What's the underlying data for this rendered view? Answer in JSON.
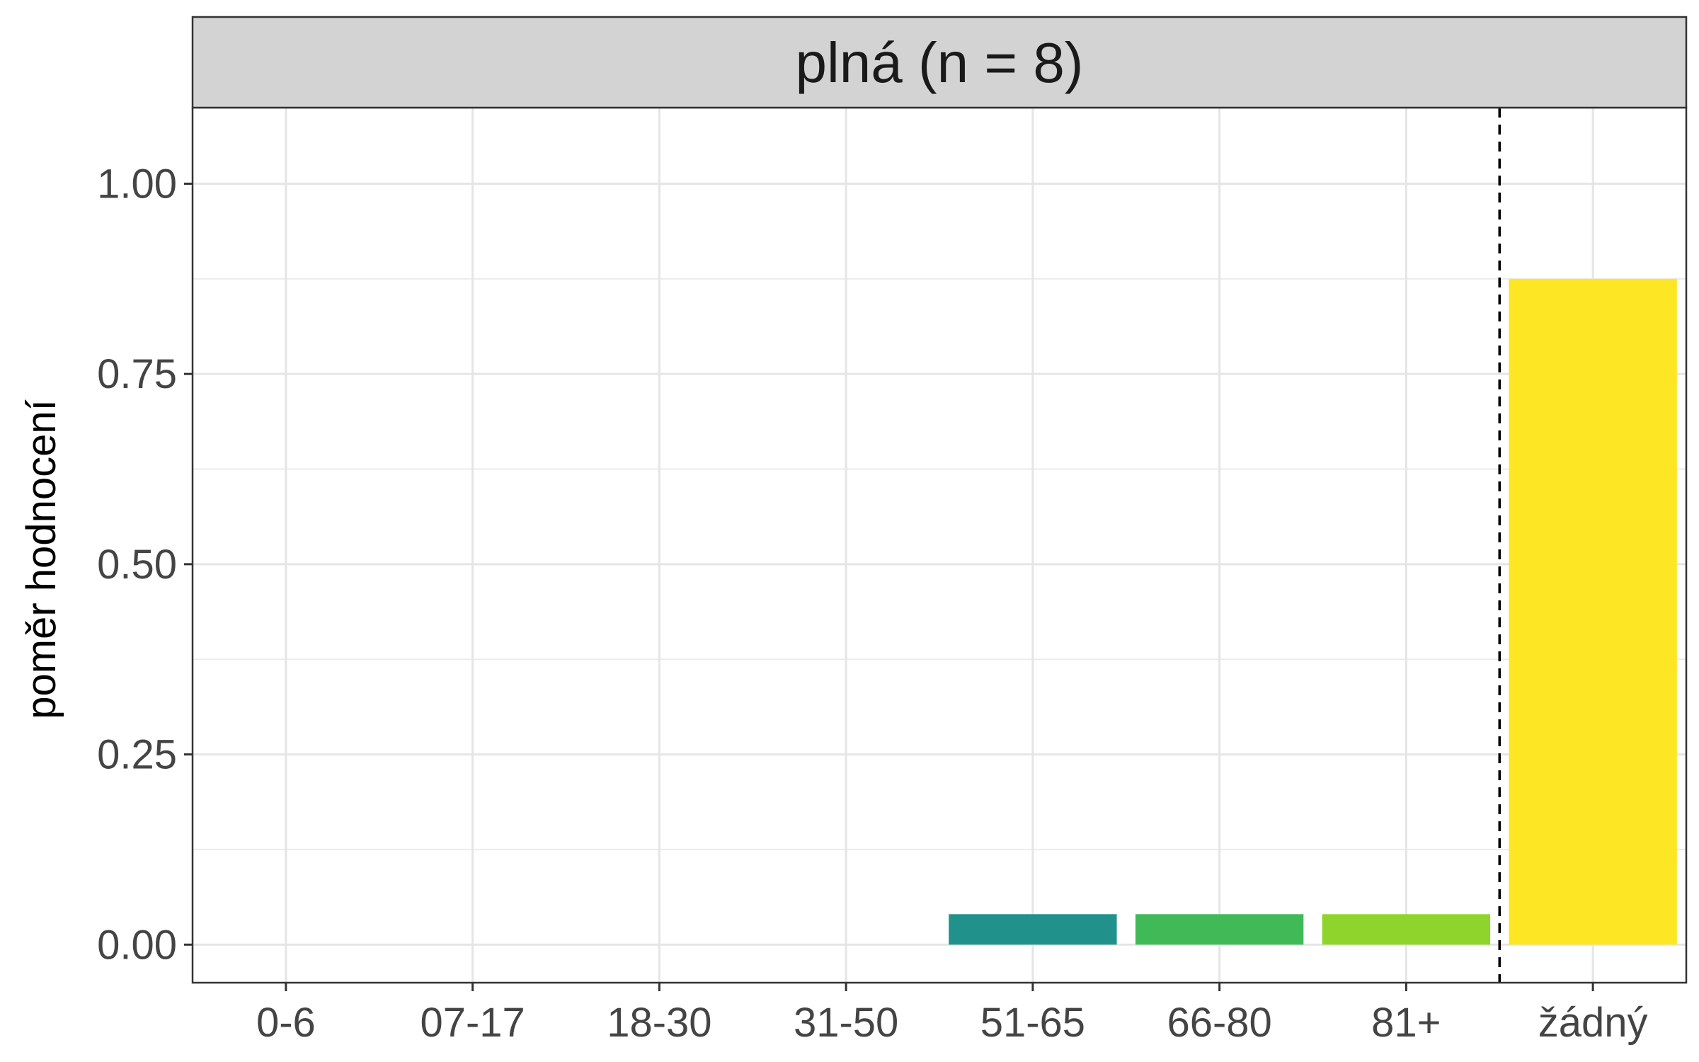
{
  "chart_data": {
    "type": "bar",
    "facet_label": "plná (n = 8)",
    "categories": [
      "0-6",
      "07-17",
      "18-30",
      "31-50",
      "51-65",
      "66-80",
      "81+",
      "žádný"
    ],
    "values": [
      0,
      0,
      0,
      0,
      0.04,
      0.04,
      0.04,
      0.875
    ],
    "colors": [
      "#440154",
      "#443983",
      "#31688e",
      "#21918c",
      "#21918c",
      "#3fba57",
      "#8fd42c",
      "#fde725"
    ],
    "xlabel": "",
    "ylabel": "poměr hodnocení",
    "ylim": [
      -0.05,
      1.1
    ],
    "yticks": [
      0.0,
      0.25,
      0.5,
      0.75,
      1.0
    ],
    "ytick_labels": [
      "0.00",
      "0.25",
      "0.50",
      "0.75",
      "1.00"
    ],
    "reference_line": {
      "style": "dashed",
      "between": [
        "81+",
        "žádný"
      ]
    },
    "grid": true,
    "legend": "none"
  }
}
